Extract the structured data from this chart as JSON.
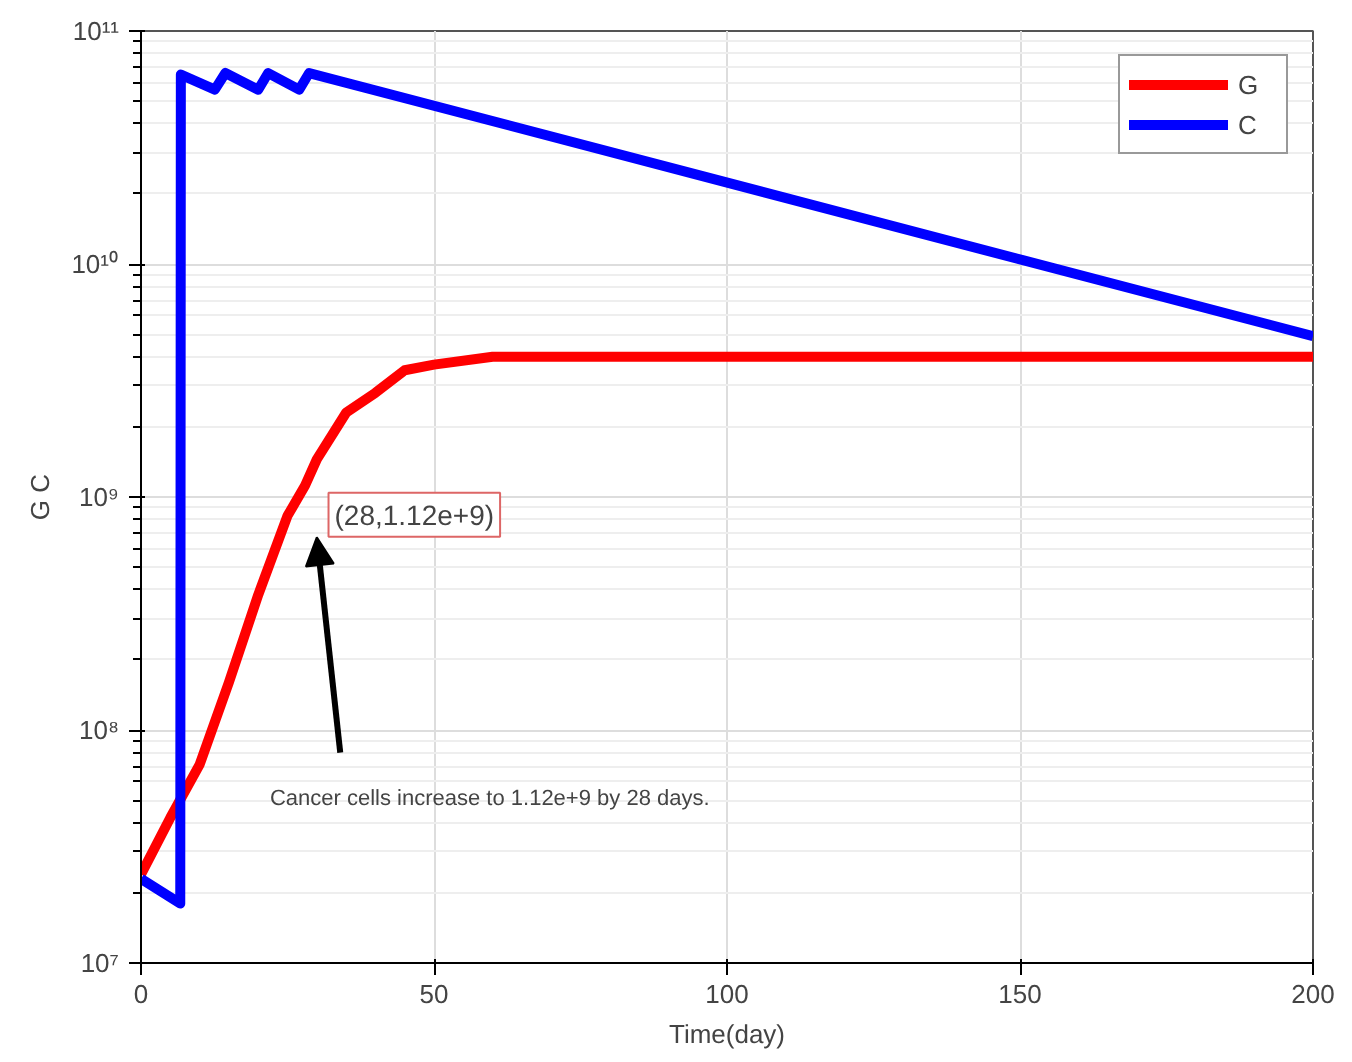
{
  "chart_data": {
    "type": "line",
    "xlabel": "Time(day)",
    "ylabel": "G C",
    "xlim": [
      0,
      200
    ],
    "xticks": [
      0,
      50,
      100,
      150,
      200
    ],
    "ylim": [
      10000000,
      100000000000
    ],
    "log": true,
    "yticks": [
      {
        "value": 10000000,
        "label": "10⁷"
      },
      {
        "value": 100000000,
        "label": "10⁸"
      },
      {
        "value": 1000000000,
        "label": "10⁹"
      },
      {
        "value": 10000000000,
        "label": "10¹⁰"
      },
      {
        "value": 100000000000,
        "label": "10¹¹"
      }
    ],
    "grid": true,
    "legend": "top right",
    "line_style": "solid",
    "series": [
      {
        "name": "G",
        "color": "#ff0000",
        "x": [
          0,
          5,
          10,
          15,
          20,
          25,
          28,
          30,
          35,
          40,
          45,
          50,
          60,
          75,
          200
        ],
        "values": [
          24000000,
          42000000,
          71000000,
          160000000,
          380000000,
          830000000,
          1120000000,
          1450000000,
          2300000000,
          2800000000,
          3500000000,
          3700000000,
          4000000000,
          4000000000,
          4000000000
        ]
      },
      {
        "name": "C",
        "color": "#0000ff",
        "x": [
          0,
          6.7,
          6.8,
          12.6,
          14.4,
          20,
          21.7,
          27,
          28.7,
          200
        ],
        "values": [
          23000000,
          18000000,
          65000000000,
          56000000000,
          66000000000,
          56000000000,
          66000000000,
          56000000000,
          66000000000,
          4900000000
        ]
      }
    ],
    "annotations": [
      {
        "text": "(28,1.12e+9)",
        "x": 28,
        "y": 1120000000
      },
      "Cancer cells increase to 1.12e+9 by 28 days."
    ]
  }
}
